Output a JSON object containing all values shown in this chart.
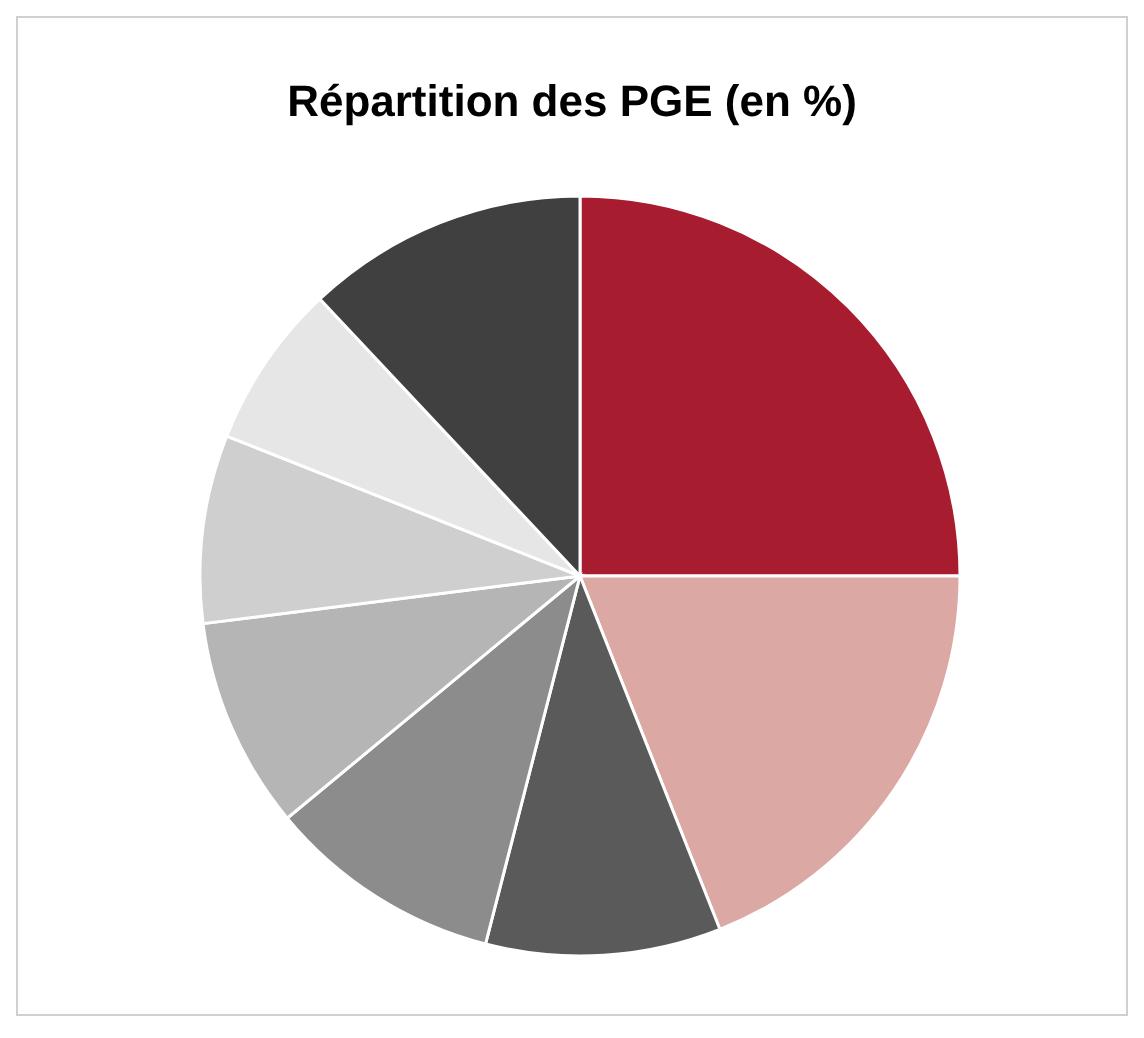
{
  "chart_data": {
    "type": "pie",
    "title": "Répartition des PGE (en %)",
    "categories": [
      null,
      null,
      null,
      null,
      null,
      null,
      null,
      null
    ],
    "values": [
      25,
      19,
      10,
      10,
      9,
      8,
      7,
      12
    ],
    "colors": [
      "#a81c2f",
      "#dba8a3",
      "#5a5a5a",
      "#8c8c8c",
      "#b5b5b5",
      "#cfcfcf",
      "#e6e6e6",
      "#404040"
    ]
  }
}
